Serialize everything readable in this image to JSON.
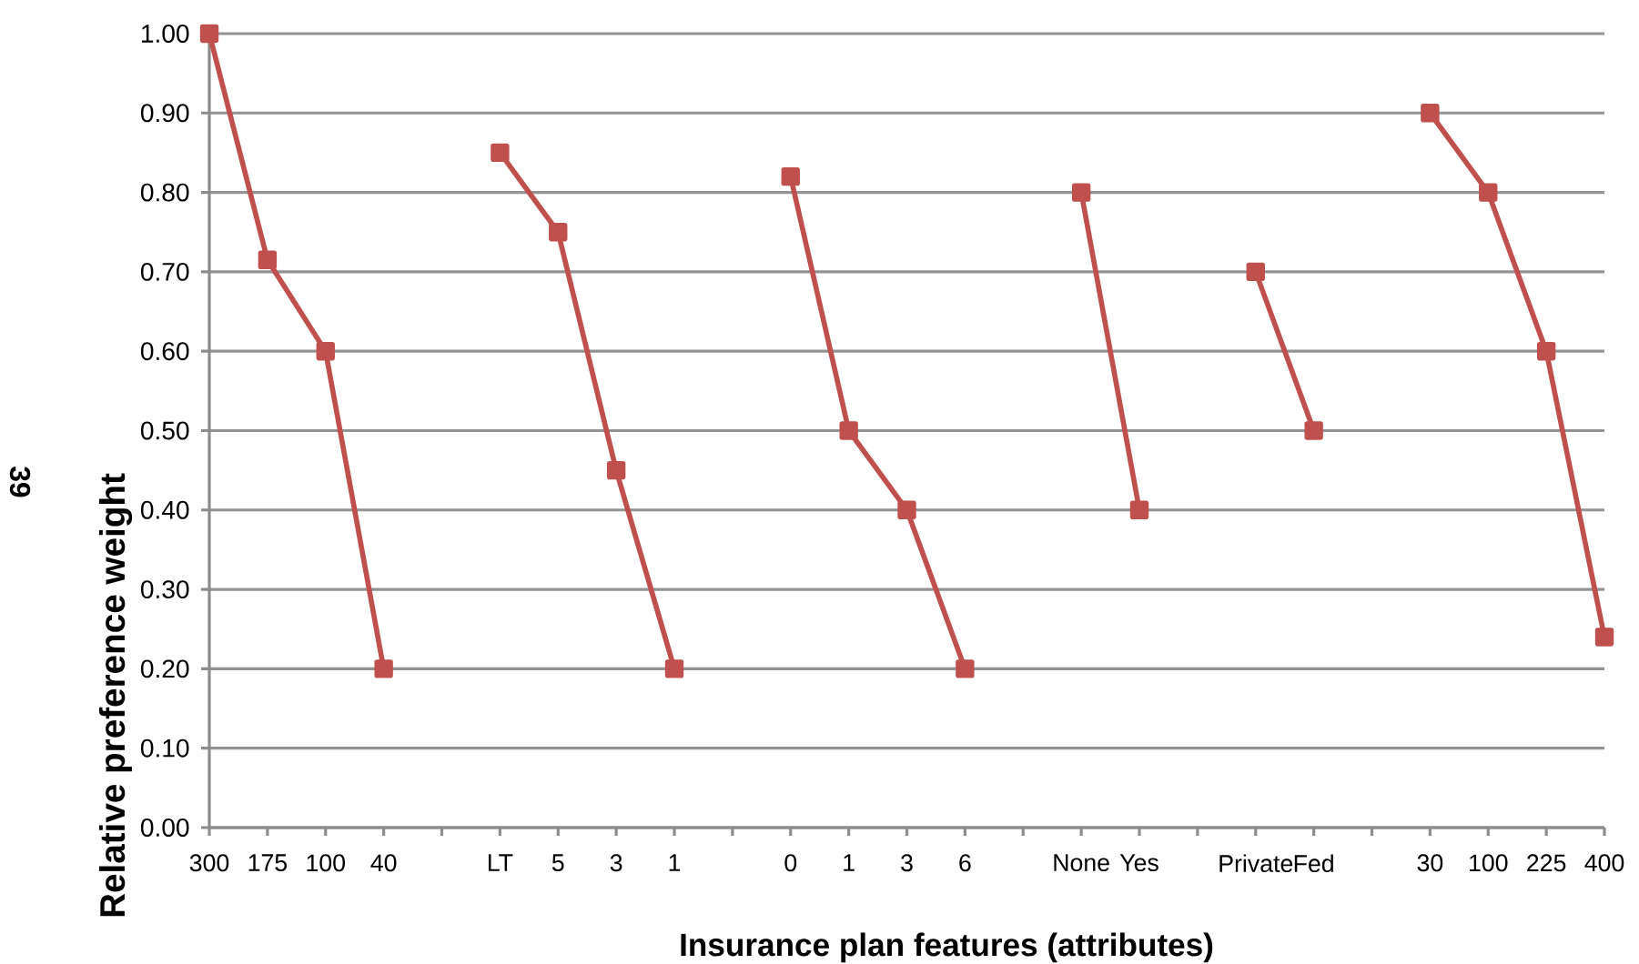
{
  "chart_data": {
    "type": "line",
    "xlabel": "Insurance plan features (attributes)",
    "ylabel": "Relative preference weight",
    "annotations": [
      "39"
    ],
    "categories": [
      "300",
      "175",
      "100",
      "40",
      null,
      "LT",
      "5",
      "3",
      "1",
      null,
      "0",
      "1",
      "3",
      "6",
      null,
      "None",
      "Yes",
      null,
      "Private",
      "Fed",
      null,
      "30",
      "100",
      "225",
      "400"
    ],
    "series": [
      {
        "color": "#c0504d",
        "values": [
          1.0,
          0.715,
          0.6,
          0.2,
          null,
          0.85,
          0.75,
          0.45,
          0.2,
          null,
          0.82,
          0.5,
          0.4,
          0.2,
          null,
          0.8,
          0.4,
          null,
          0.7,
          0.5,
          null,
          0.9,
          0.8,
          0.6,
          0.24
        ]
      }
    ],
    "ylim": [
      0,
      1
    ],
    "yticks": [
      {
        "value": 0,
        "label": "0.00"
      },
      {
        "value": 0.1,
        "label": "0.10"
      },
      {
        "value": 0.2,
        "label": "0.20"
      },
      {
        "value": 0.3,
        "label": "0.30"
      },
      {
        "value": 0.4,
        "label": "0.40"
      },
      {
        "value": 0.5,
        "label": "0.50"
      },
      {
        "value": 0.6,
        "label": "0.60"
      },
      {
        "value": 0.7,
        "label": "0.70"
      },
      {
        "value": 0.8,
        "label": "0.80"
      },
      {
        "value": 0.9,
        "label": "0.90"
      },
      {
        "value": 1,
        "label": "1.00"
      }
    ],
    "grid": "y",
    "marker": "square",
    "line_style": "solid"
  }
}
